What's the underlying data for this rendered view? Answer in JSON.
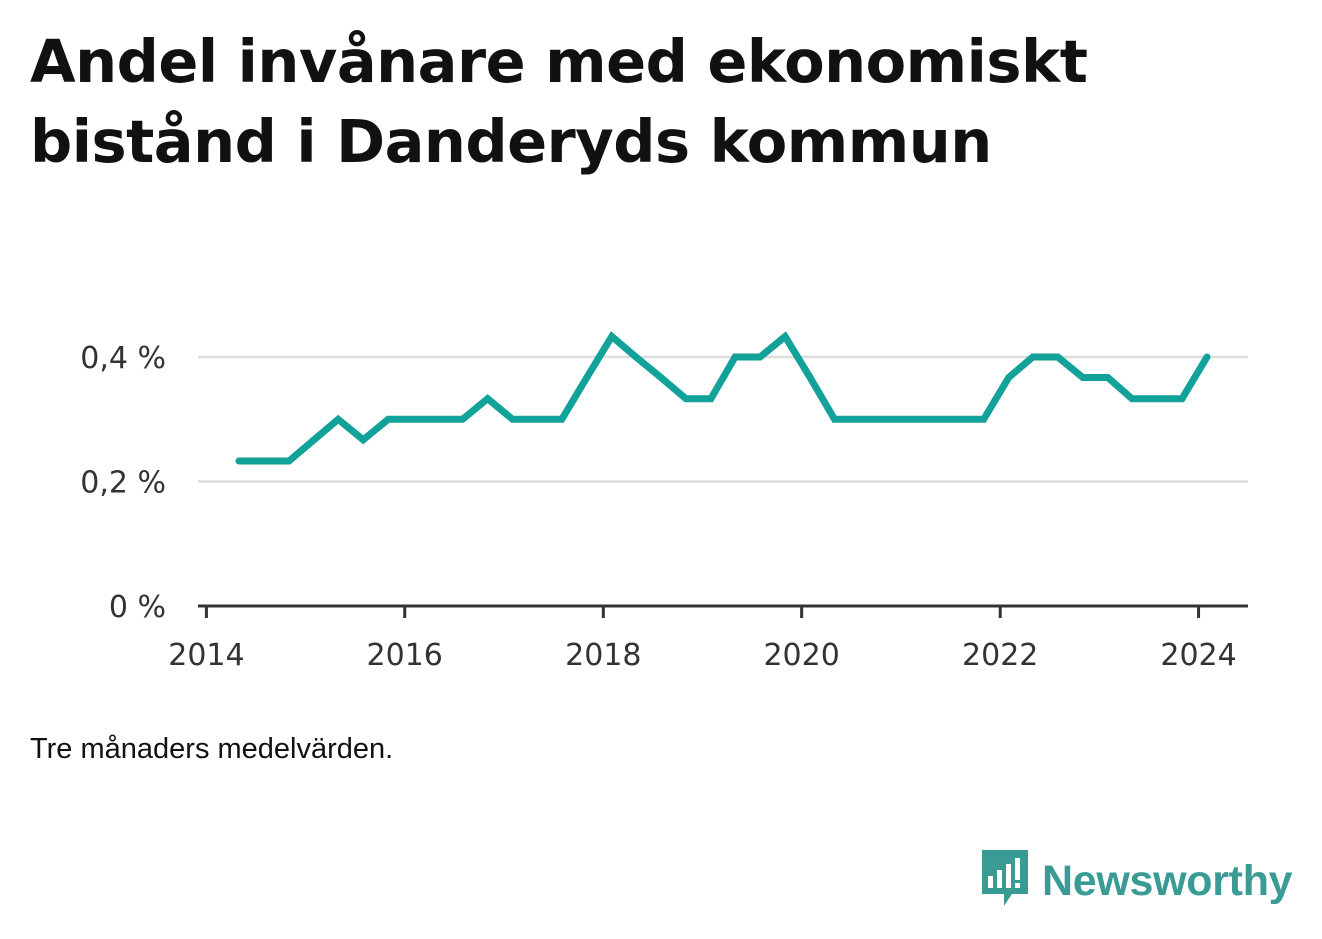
{
  "title": "Andel invånare med ekonomiskt bistånd i Danderyds kommun",
  "note": "Tre månaders medelvärden.",
  "brand": {
    "name": "Newsworthy",
    "icon": "newsworthy-logo-icon",
    "color": "#3a9b95"
  },
  "chart_data": {
    "type": "line",
    "title": "Andel invånare med ekonomiskt bistånd i Danderyds kommun",
    "xlabel": "",
    "ylabel": "",
    "ylim": [
      0,
      0.4
    ],
    "xlim": [
      "2013-12-01",
      "2024-07-01"
    ],
    "yticks": [
      {
        "value": 0,
        "label": "0 %"
      },
      {
        "value": 0.2,
        "label": "0,2 %"
      },
      {
        "value": 0.4,
        "label": "0,4 %"
      }
    ],
    "xticks": [
      {
        "value": "2014-01-01",
        "label": "2014"
      },
      {
        "value": "2016-01-01",
        "label": "2016"
      },
      {
        "value": "2018-01-01",
        "label": "2018"
      },
      {
        "value": "2020-01-01",
        "label": "2020"
      },
      {
        "value": "2022-01-01",
        "label": "2022"
      },
      {
        "value": "2024-01-01",
        "label": "2024"
      }
    ],
    "grid": true,
    "series": [
      {
        "color": "#12a29a",
        "x": [
          "2014-05-01",
          "2014-08-01",
          "2014-11-01",
          "2015-02-01",
          "2015-05-01",
          "2015-08-01",
          "2015-11-01",
          "2016-02-01",
          "2016-05-01",
          "2016-08-01",
          "2016-11-01",
          "2017-02-01",
          "2017-05-01",
          "2017-08-01",
          "2017-11-01",
          "2018-02-01",
          "2018-05-01",
          "2018-08-01",
          "2018-11-01",
          "2019-02-01",
          "2019-05-01",
          "2019-08-01",
          "2019-11-01",
          "2020-02-01",
          "2020-05-01",
          "2020-08-01",
          "2020-11-01",
          "2021-02-01",
          "2021-05-01",
          "2021-08-01",
          "2021-11-01",
          "2022-02-01",
          "2022-05-01",
          "2022-08-01",
          "2022-11-01",
          "2023-02-01",
          "2023-05-01",
          "2023-08-01",
          "2023-11-01",
          "2024-02-01"
        ],
        "values": [
          0.233,
          0.233,
          0.233,
          0.267,
          0.3,
          0.267,
          0.3,
          0.3,
          0.3,
          0.3,
          0.333,
          0.3,
          0.3,
          0.3,
          0.367,
          0.433,
          0.4,
          0.367,
          0.333,
          0.333,
          0.4,
          0.4,
          0.433,
          0.367,
          0.3,
          0.3,
          0.3,
          0.3,
          0.3,
          0.3,
          0.3,
          0.367,
          0.4,
          0.4,
          0.367,
          0.367,
          0.333,
          0.333,
          0.333,
          0.4
        ]
      }
    ]
  }
}
